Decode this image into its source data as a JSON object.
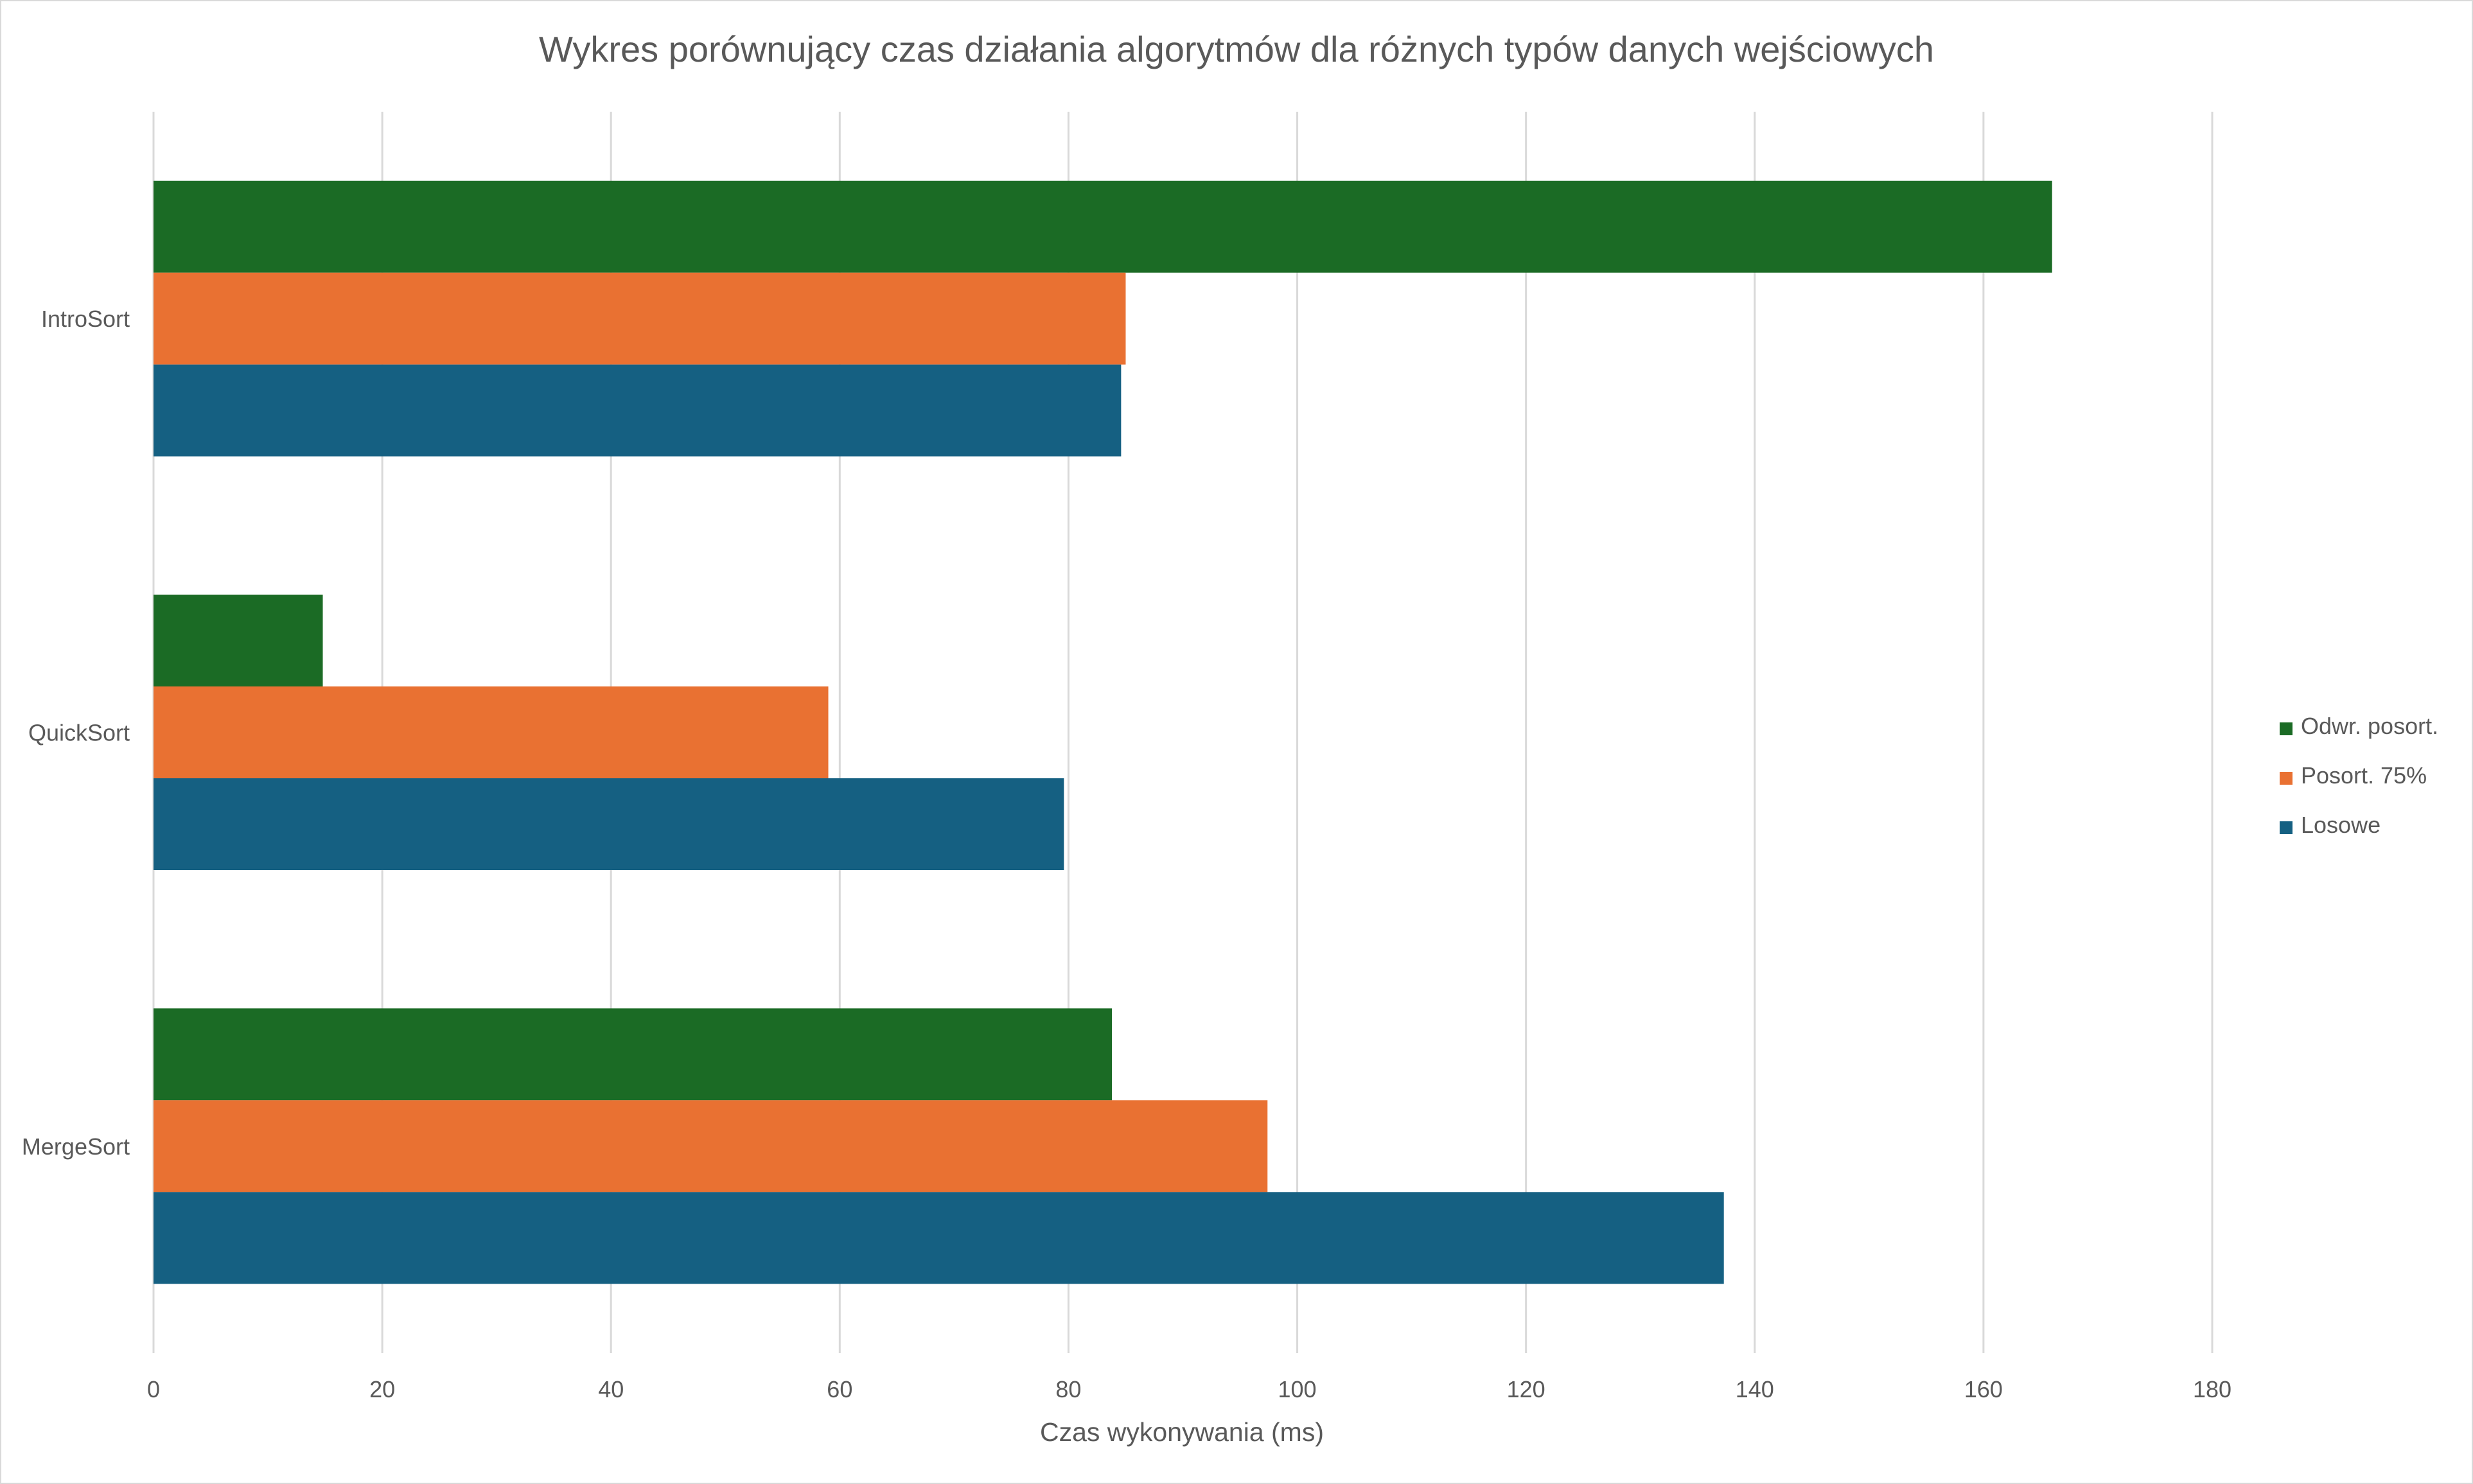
{
  "chart_data": {
    "type": "bar",
    "orientation": "horizontal",
    "title": "Wykres porównujący czas działania algorytmów dla różnych typów danych wejściowych",
    "xlabel": "Czas wykonywania (ms)",
    "ylabel": "",
    "xlim": [
      0,
      180
    ],
    "xticks": [
      0,
      20,
      40,
      60,
      80,
      100,
      120,
      140,
      160,
      180
    ],
    "grid": true,
    "legend_position": "right",
    "categories": [
      "IntroSort",
      "QuickSort",
      "MergeSort"
    ],
    "series": [
      {
        "name": "Odwr. posort.",
        "color": "#1b6b25",
        "values": [
          166,
          14.8,
          83.8
        ]
      },
      {
        "name": "Posort. 75%",
        "color": "#e97132",
        "values": [
          85,
          59,
          97.4
        ]
      },
      {
        "name": "Losowe",
        "color": "#156082",
        "values": [
          84.6,
          79.6,
          137.3
        ]
      }
    ],
    "legend_order": [
      "Odwr. posort.",
      "Posort. 75%",
      "Losowe"
    ]
  }
}
